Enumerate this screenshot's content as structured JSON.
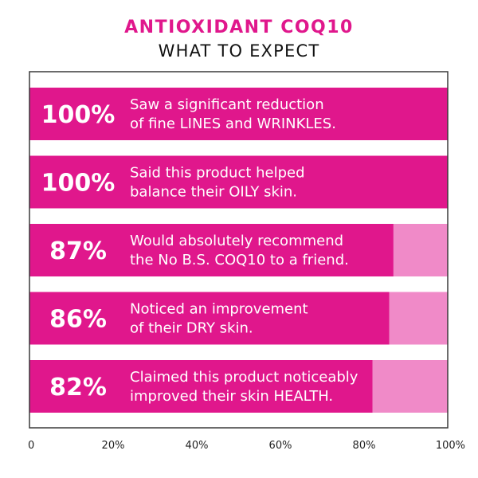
{
  "header": {
    "title": "ANTIOXIDANT COQ10",
    "subtitle": "WHAT TO EXPECT"
  },
  "colors": {
    "bar": "#e0178c",
    "bar_remainder": "#f08ac8",
    "title": "#e0178c",
    "frame": "#3a3a3a"
  },
  "chart_data": {
    "type": "bar",
    "orientation": "horizontal",
    "categories": [
      [
        "Saw a significant reduction",
        "of fine LINES and WRINKLES."
      ],
      [
        "Said this product helped",
        "balance their OILY skin."
      ],
      [
        "Would absolutely recommend",
        "the No B.S. COQ10 to a friend."
      ],
      [
        "Noticed an improvement",
        "of their DRY skin."
      ],
      [
        "Claimed this product noticeably",
        "improved their skin HEALTH."
      ]
    ],
    "values": [
      100,
      100,
      87,
      86,
      82
    ],
    "value_labels": [
      "100%",
      "100%",
      "87%",
      "86%",
      "82%"
    ],
    "xlim": [
      0,
      100
    ],
    "xticks": [
      0,
      20,
      40,
      60,
      80,
      100
    ],
    "xtick_labels": [
      "0",
      "20%",
      "40%",
      "60%",
      "80%",
      "100%"
    ],
    "grid": false,
    "legend": "none"
  }
}
